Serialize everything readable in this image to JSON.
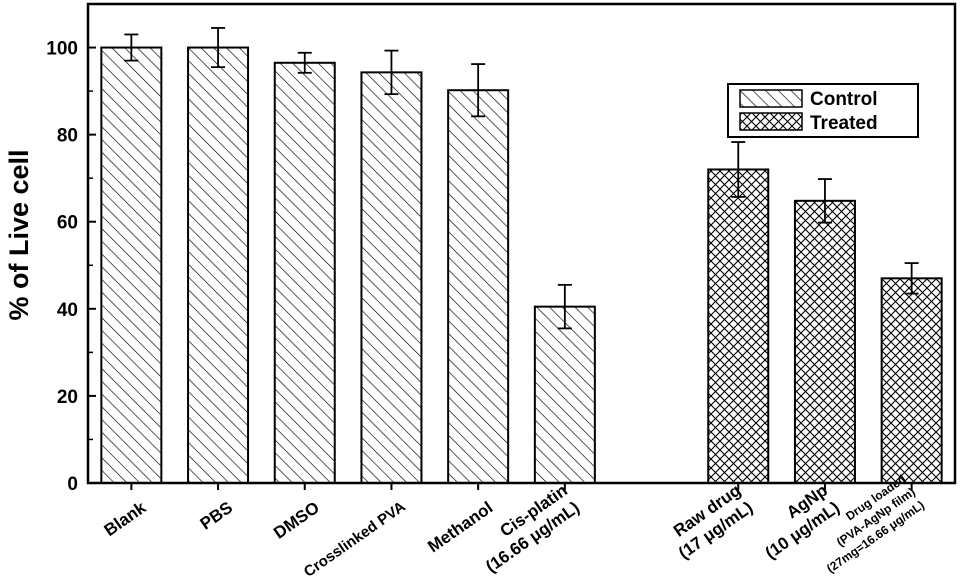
{
  "chart_data": {
    "type": "bar",
    "title": "",
    "xlabel": "",
    "ylabel": "% of Live cell",
    "ylim": [
      0,
      110
    ],
    "yticks": [
      "0",
      "20",
      "40",
      "60",
      "80",
      "100"
    ],
    "grid": false,
    "legend_position": "top-right",
    "legend": [
      {
        "name": "Control",
        "pattern": "hatch"
      },
      {
        "name": "Treated",
        "pattern": "crosshatch"
      }
    ],
    "categories": [
      {
        "lines": [
          "Blank"
        ],
        "value": 100,
        "error": 3,
        "group": "Control"
      },
      {
        "lines": [
          "PBS"
        ],
        "value": 100,
        "error": 4.5,
        "group": "Control"
      },
      {
        "lines": [
          "DMSO"
        ],
        "value": 96.5,
        "error": 2.3,
        "group": "Control"
      },
      {
        "lines": [
          "Crosslinked PVA"
        ],
        "value": 94.3,
        "error": 5,
        "group": "Control"
      },
      {
        "lines": [
          "Methanol"
        ],
        "value": 90.2,
        "error": 6,
        "group": "Control"
      },
      {
        "lines": [
          "Cis-platin",
          "(16.66 μg/mL)"
        ],
        "value": 40.5,
        "error": 5,
        "group": "Control"
      },
      {
        "lines": [
          "Raw drug",
          "(17 μg/mL)"
        ],
        "value": 72,
        "error": 6.3,
        "group": "Treated"
      },
      {
        "lines": [
          "AgNp",
          "(10 μg/mL)"
        ],
        "value": 64.8,
        "error": 5,
        "group": "Treated"
      },
      {
        "lines": [
          "Drug loaded",
          "(PVA-AgNp film)",
          "(27mg=16.66 μg/mL)"
        ],
        "value": 47,
        "error": 3.5,
        "group": "Treated"
      }
    ]
  }
}
